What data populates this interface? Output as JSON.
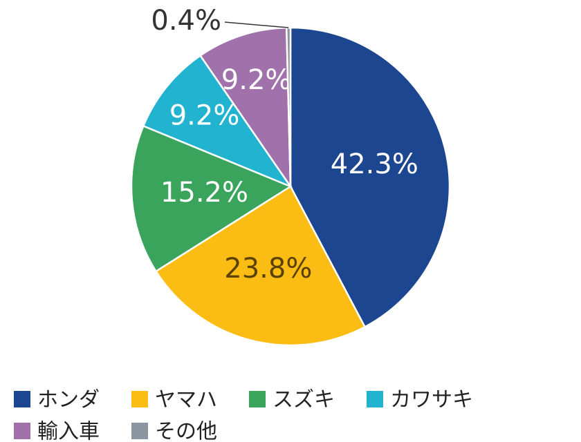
{
  "chart_data": {
    "type": "pie",
    "categories": [
      "ホンダ",
      "ヤマハ",
      "スズキ",
      "カワサキ",
      "輸入車",
      "その他"
    ],
    "values": [
      42.3,
      23.8,
      15.2,
      9.2,
      9.2,
      0.4
    ],
    "value_labels": [
      "42.3%",
      "23.8%",
      "15.2%",
      "9.2%",
      "9.2%",
      "0.4%"
    ],
    "colors": [
      "#1d4690",
      "#fbbd14",
      "#3aa35c",
      "#22b3d0",
      "#a071aa",
      "#8c96a0"
    ],
    "legend": "bottom"
  }
}
